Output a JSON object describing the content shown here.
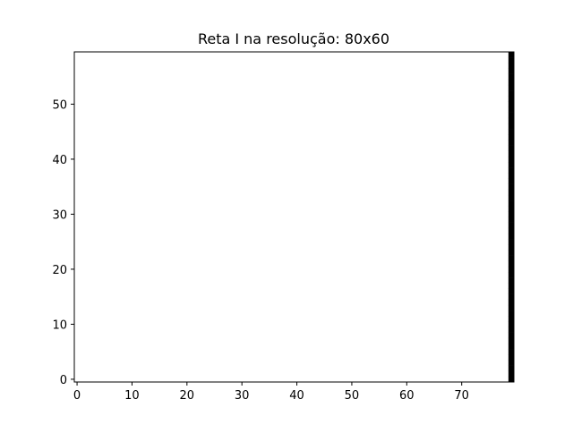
{
  "chart_data": {
    "type": "heatmap",
    "title": "Reta I na resolução: 80x60",
    "xlabel": "",
    "ylabel": "",
    "resolution": {
      "width": 80,
      "height": 60
    },
    "xlim": [
      -0.5,
      79.5
    ],
    "ylim": [
      -0.5,
      59.5
    ],
    "xticks": [
      0,
      10,
      20,
      30,
      40,
      50,
      60,
      70
    ],
    "yticks": [
      0,
      10,
      20,
      30,
      40,
      50
    ],
    "grid": false,
    "colormap": {
      "background": "#ffffff",
      "line": "#000000"
    },
    "line_pixels": {
      "x": 79,
      "y_from": 0,
      "y_to": 59
    }
  }
}
